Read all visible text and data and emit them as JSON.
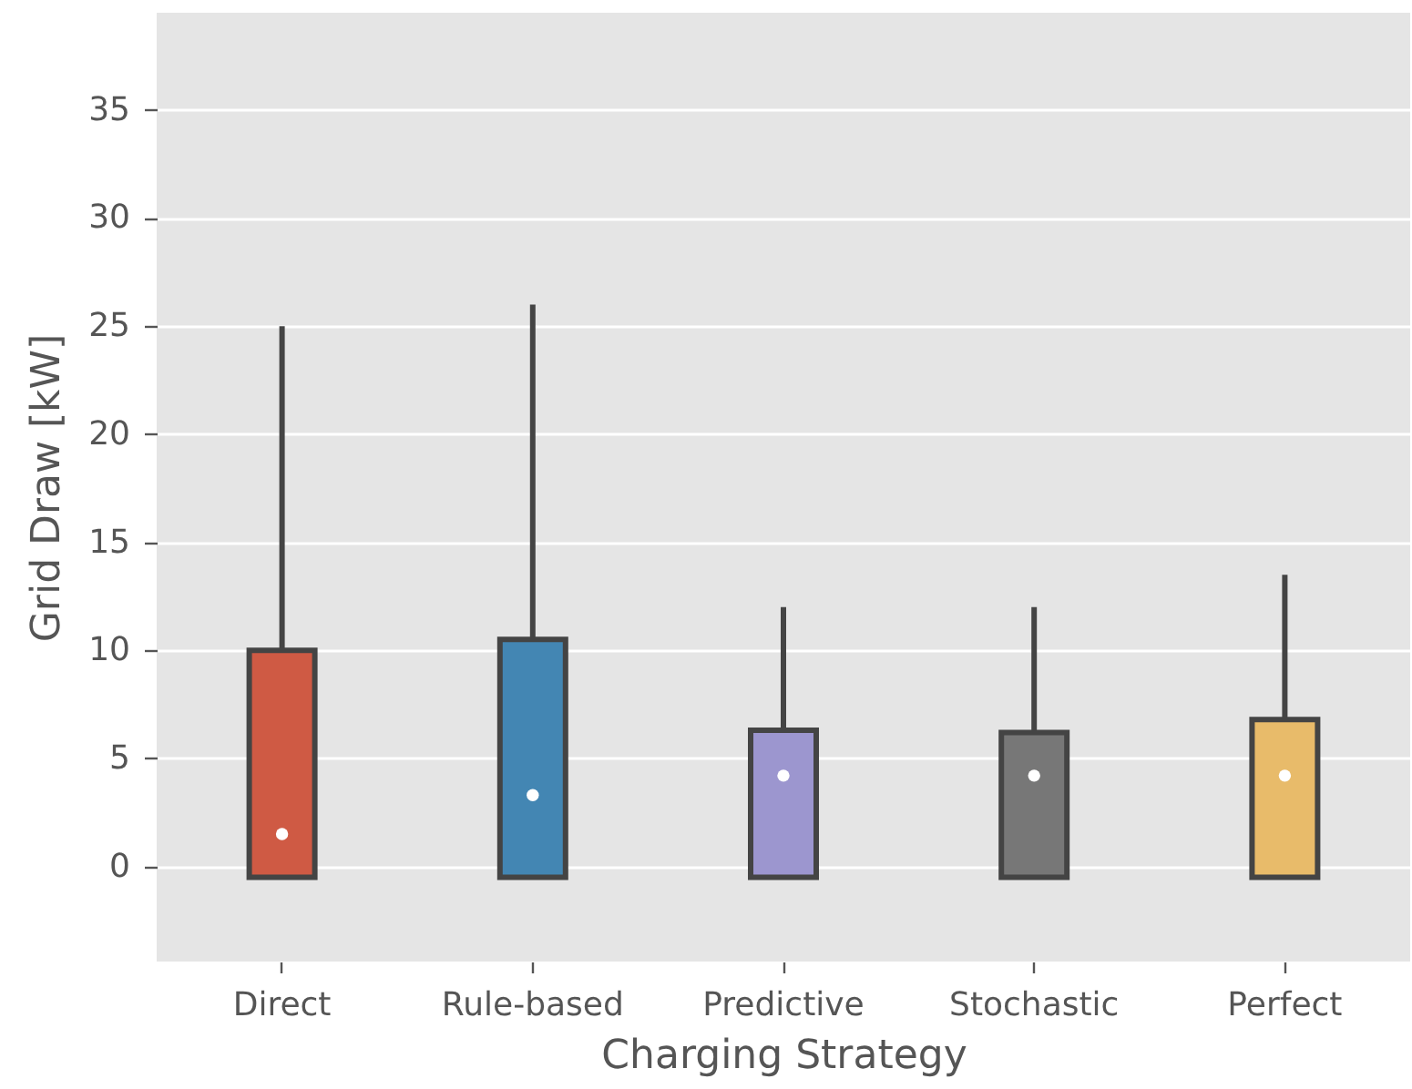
{
  "chart_data": {
    "type": "box",
    "xlabel": "Charging Strategy",
    "ylabel": "Grid Draw [kW]",
    "categories": [
      "Direct",
      "Rule-based",
      "Predictive",
      "Stochastic",
      "Perfect"
    ],
    "colors": [
      "#cf5a44",
      "#4386b3",
      "#9c96cf",
      "#777777",
      "#e8bb6a"
    ],
    "boxes": [
      {
        "low": -0.5,
        "q1": -0.5,
        "median": 1.5,
        "q3": 10,
        "high": 25
      },
      {
        "low": -0.5,
        "q1": -0.5,
        "median": 3.3,
        "q3": 10.5,
        "high": 26
      },
      {
        "low": -0.5,
        "q1": -0.5,
        "median": 4.2,
        "q3": 6.3,
        "high": 12
      },
      {
        "low": -0.5,
        "q1": -0.5,
        "median": 4.2,
        "q3": 6.2,
        "high": 12
      },
      {
        "low": -0.5,
        "q1": -0.5,
        "median": 4.2,
        "q3": 6.8,
        "high": 13.5
      }
    ],
    "ylim": [
      -4.4,
      39.5
    ],
    "yticks": [
      0,
      5,
      10,
      15,
      20,
      25,
      30,
      35
    ],
    "grid": "y"
  }
}
